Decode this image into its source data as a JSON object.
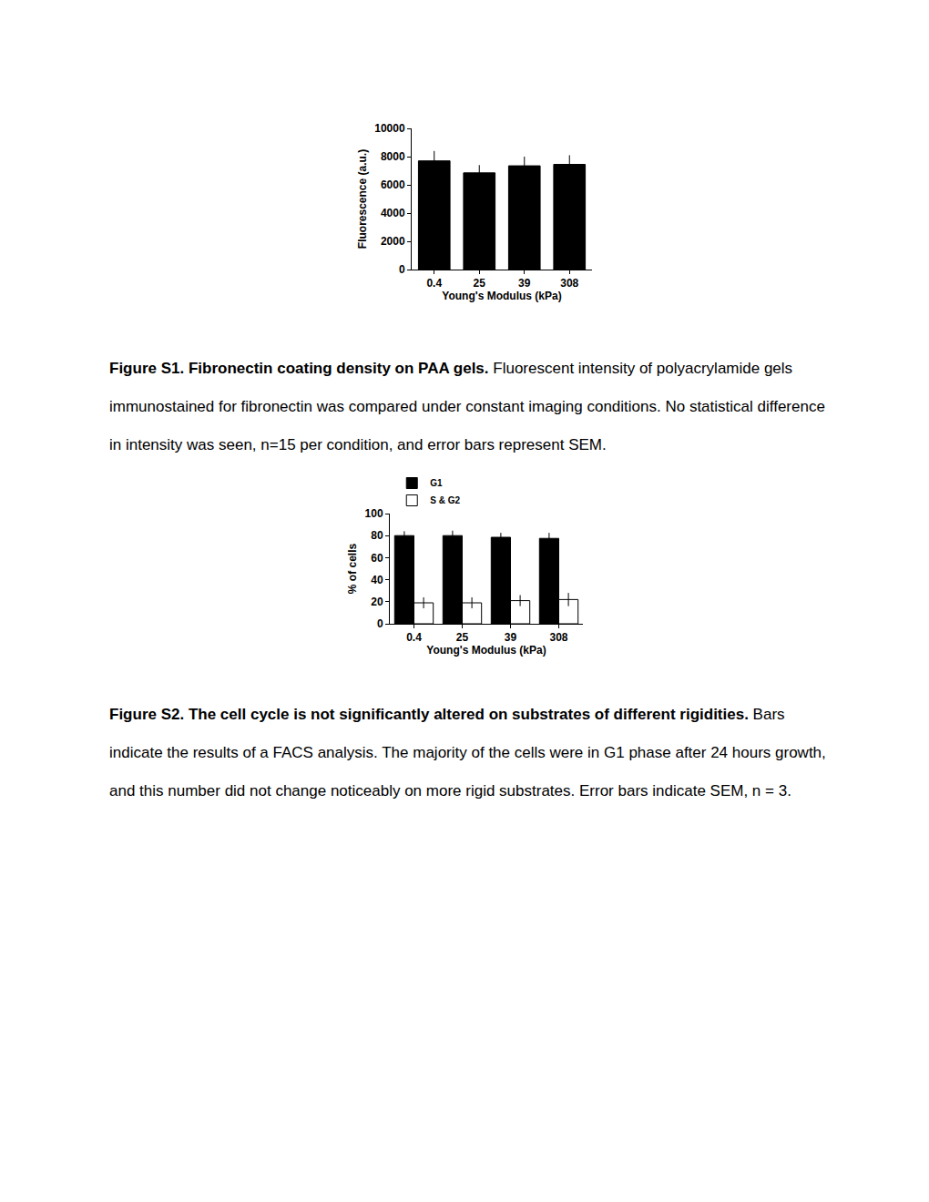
{
  "chart_data": [
    {
      "type": "bar",
      "categories": [
        "0.4",
        "25",
        "39",
        "308"
      ],
      "values": [
        7700,
        6850,
        7350,
        7450
      ],
      "errors": [
        700,
        550,
        650,
        650
      ],
      "color": "#000000",
      "xlabel": "Young's Modulus (kPa)",
      "ylabel": "Fluorescence (a.u.)",
      "ylim": [
        0,
        10000
      ],
      "yticks": [
        0,
        2000,
        4000,
        6000,
        8000,
        10000
      ],
      "grid": false
    },
    {
      "type": "bar",
      "categories": [
        "0.4",
        "25",
        "39",
        "308"
      ],
      "series": [
        {
          "name": "G1",
          "color": "#000000",
          "values": [
            80,
            80,
            78.5,
            77.5
          ],
          "errors": [
            4,
            4.5,
            4,
            5
          ]
        },
        {
          "name": "S & G2",
          "color": "#ffffff",
          "values": [
            19,
            19,
            21,
            22
          ],
          "errors": [
            5,
            5,
            5,
            6
          ]
        }
      ],
      "xlabel": "Young's Modulus (kPa)",
      "ylabel": "% of cells",
      "ylim": [
        0,
        100
      ],
      "yticks": [
        0,
        20,
        40,
        60,
        80,
        100
      ],
      "legend": "top-left",
      "grid": false
    }
  ],
  "captions": [
    {
      "title": "Figure S1. Fibronectin coating density on PAA gels.",
      "text": "Fluorescent intensity of polyacrylamide gels immunostained for fibronectin was compared under constant imaging conditions.  No statistical difference in intensity was seen, n=15 per condition, and error bars represent SEM."
    },
    {
      "title": "Figure S2. The cell cycle is not significantly altered on substrates of different rigidities.",
      "text": "Bars indicate the results of a FACS analysis. The majority of the cells were in G1 phase after 24 hours growth, and this number did not change noticeably on more rigid substrates. Error bars indicate SEM, n = 3."
    }
  ]
}
